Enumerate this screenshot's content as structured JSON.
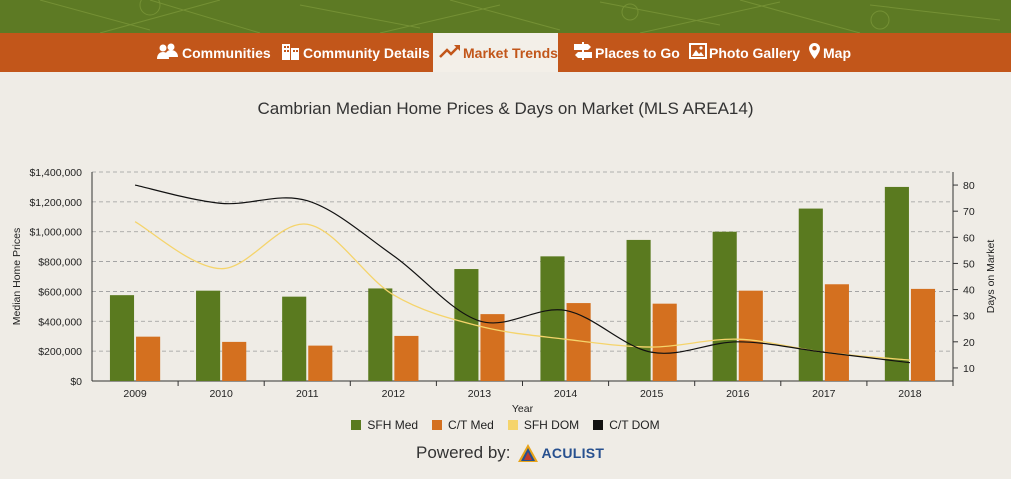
{
  "nav": {
    "items": [
      {
        "label": "Communities",
        "icon": "users-icon",
        "active": false
      },
      {
        "label": "Community Details",
        "icon": "buildings-icon",
        "active": false
      },
      {
        "label": "Market Trends",
        "icon": "trend-line-icon",
        "active": true
      },
      {
        "label": "Places to Go",
        "icon": "signpost-icon",
        "active": false
      },
      {
        "label": "Photo Gallery",
        "icon": "image-icon",
        "active": false
      },
      {
        "label": "Map",
        "icon": "map-pin-icon",
        "active": false
      }
    ]
  },
  "colors": {
    "banner": "#5d7a24",
    "nav": "#c2561a",
    "sfh_med": "#5a7a1f",
    "ct_med": "#d4701f",
    "sfh_dom": "#f5d46b",
    "ct_dom": "#111111"
  },
  "chart_data": {
    "type": "bar",
    "title": "Cambrian Median Home Prices & Days on Market (MLS AREA14)",
    "xlabel": "Year",
    "ylabel": "Median Home Prices",
    "y2label": "Days on Market",
    "categories": [
      "2009",
      "2010",
      "2011",
      "2012",
      "2013",
      "2014",
      "2015",
      "2016",
      "2017",
      "2018"
    ],
    "ylim": [
      0,
      1400000
    ],
    "yticks": [
      "$0",
      "$200,000",
      "$400,000",
      "$600,000",
      "$800,000",
      "$1,000,000",
      "$1,200,000",
      "$1,400,000"
    ],
    "y2lim": [
      5,
      85
    ],
    "y2ticks": [
      "10",
      "20",
      "30",
      "40",
      "50",
      "60",
      "70",
      "80"
    ],
    "grid": true,
    "legend_position": "bottom",
    "series": [
      {
        "name": "SFH Med",
        "kind": "bar",
        "axis": "left",
        "values": [
          575000,
          605000,
          565000,
          620000,
          750000,
          835000,
          945000,
          1000000,
          1155000,
          1300000
        ]
      },
      {
        "name": "C/T Med",
        "kind": "bar",
        "axis": "left",
        "values": [
          297000,
          262000,
          237000,
          302000,
          448000,
          522000,
          518000,
          605000,
          648000,
          617000
        ]
      },
      {
        "name": "SFH DOM",
        "kind": "line",
        "axis": "right",
        "values": [
          66,
          48,
          65,
          38,
          26,
          21,
          18,
          21,
          16,
          13
        ]
      },
      {
        "name": "C/T DOM",
        "kind": "line",
        "axis": "right",
        "values": [
          80,
          73,
          74,
          53,
          28,
          32,
          16,
          20,
          16,
          12
        ]
      }
    ]
  },
  "footer": {
    "powered_label": "Powered by:",
    "brand": "ACULIST"
  }
}
